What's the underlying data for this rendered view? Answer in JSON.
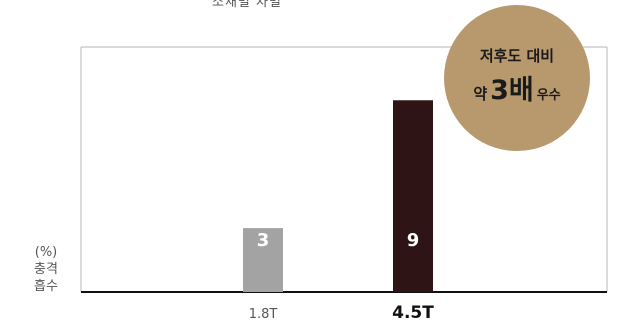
{
  "top_caption": "소재별 차별",
  "badge": {
    "line1": "저후도 대비",
    "prefix": "약",
    "highlight": "3배",
    "suffix": "우수"
  },
  "chart_data": {
    "type": "bar",
    "categories": [
      "1.8T",
      "4.5T"
    ],
    "values": [
      3,
      9
    ],
    "ylabel_unit": "(%)",
    "ylabel_line1": "충격",
    "ylabel_line2": "흡수",
    "colors": [
      "#a3a3a3",
      "#2e1414"
    ],
    "ylim": [
      0,
      11.5
    ],
    "category_bold": [
      false,
      true
    ]
  }
}
